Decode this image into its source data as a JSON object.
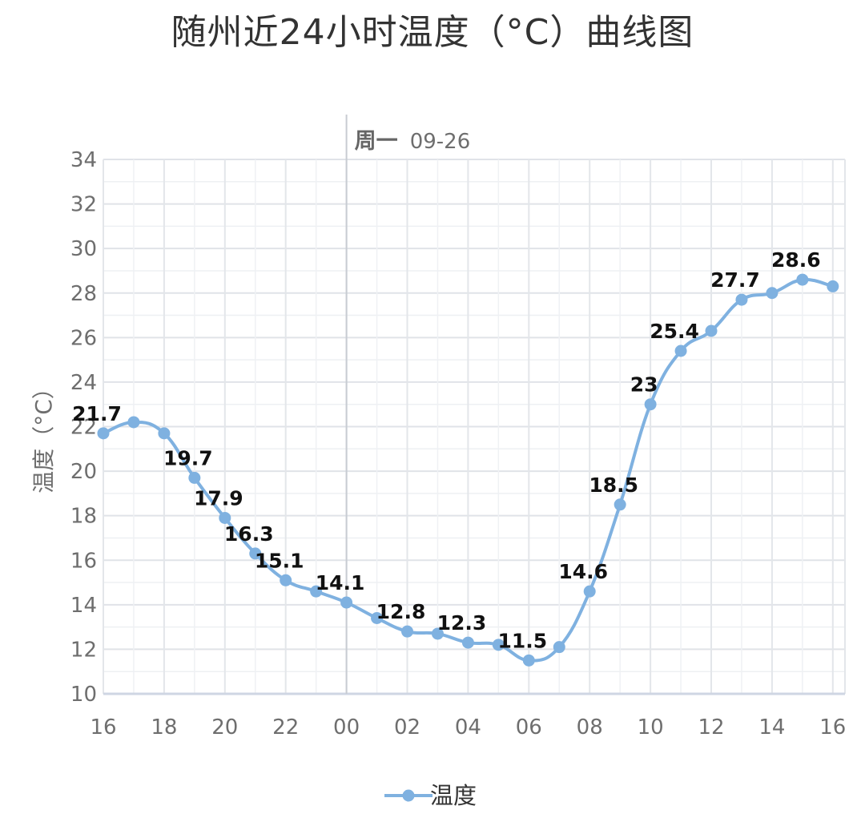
{
  "title": "随州近24小时温度（°C）曲线图",
  "chart_data": {
    "type": "line",
    "title": "随州近24小时温度（°C）曲线图",
    "xlabel": "",
    "ylabel": "温度（°C）",
    "ylim": [
      10,
      34
    ],
    "y_ticks": [
      "10",
      "12",
      "14",
      "16",
      "18",
      "20",
      "22",
      "24",
      "26",
      "28",
      "30",
      "32",
      "34"
    ],
    "x_tick_labels": [
      "16",
      "18",
      "20",
      "22",
      "00",
      "02",
      "04",
      "06",
      "08",
      "10",
      "12",
      "14",
      "16"
    ],
    "day_marker": {
      "weekday": "周一",
      "date": "09-26"
    },
    "grid": true,
    "legend_position": "bottom",
    "x": [
      "16",
      "17",
      "18",
      "19",
      "20",
      "21",
      "22",
      "23",
      "00",
      "01",
      "02",
      "03",
      "04",
      "05",
      "06",
      "07",
      "08",
      "09",
      "10",
      "11",
      "12",
      "13",
      "14",
      "15",
      "16"
    ],
    "series": [
      {
        "name": "温度",
        "color": "#7fb1e0",
        "values": [
          21.7,
          22.2,
          21.7,
          19.7,
          17.9,
          16.3,
          15.1,
          14.6,
          14.1,
          13.4,
          12.8,
          12.7,
          12.3,
          12.2,
          11.5,
          12.1,
          14.6,
          18.5,
          23.0,
          25.4,
          26.3,
          27.7,
          28.0,
          28.6,
          28.3
        ],
        "labels": [
          "21.7",
          "",
          "",
          "19.7",
          "17.9",
          "16.3",
          "15.1",
          "",
          "14.1",
          "",
          "12.8",
          "",
          "12.3",
          "",
          "11.5",
          "",
          "14.6",
          "18.5",
          "23",
          "25.4",
          "",
          "27.7",
          "",
          "28.6",
          ""
        ]
      }
    ]
  }
}
